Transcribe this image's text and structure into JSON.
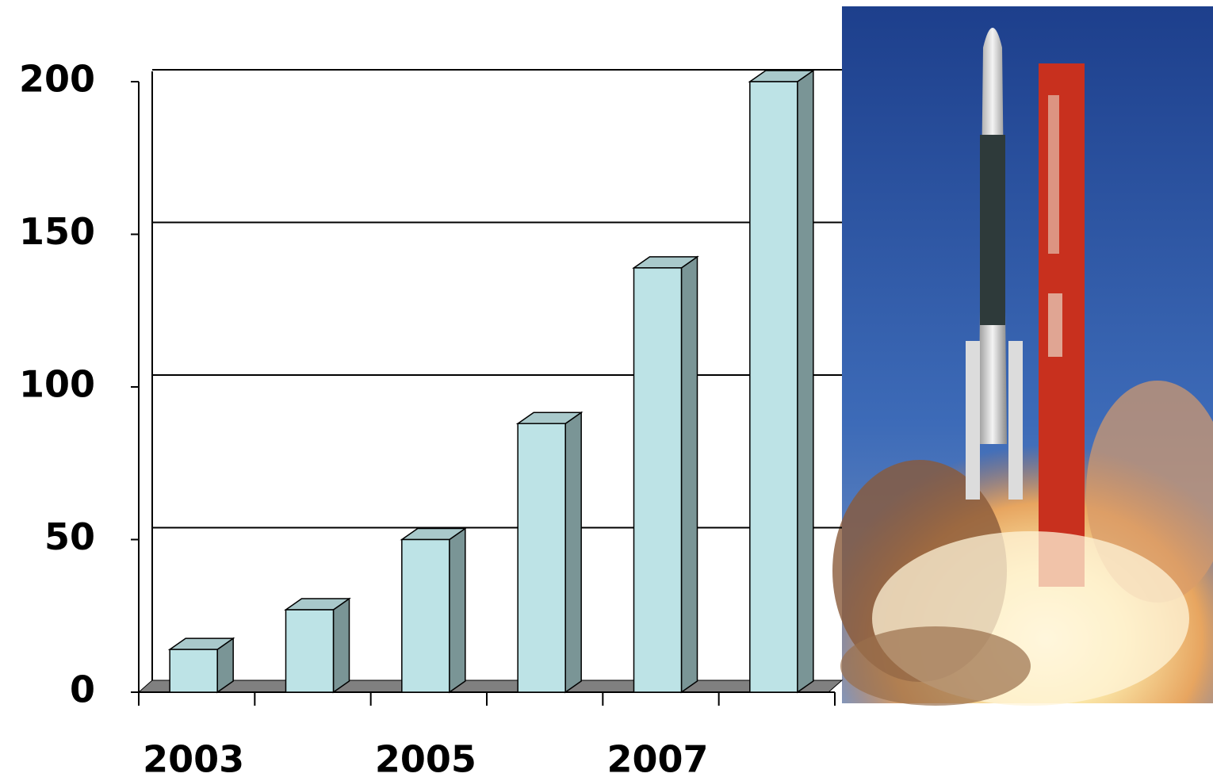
{
  "chart_data": {
    "type": "bar",
    "categories": [
      "2003",
      null,
      "2005",
      null,
      "2007",
      null
    ],
    "values": [
      14,
      27,
      50,
      88,
      139,
      200
    ],
    "color": "#bde3e6",
    "ylim": [
      0,
      200
    ],
    "yticks": [
      0,
      50,
      100,
      150,
      200
    ],
    "grid": true
  }
}
